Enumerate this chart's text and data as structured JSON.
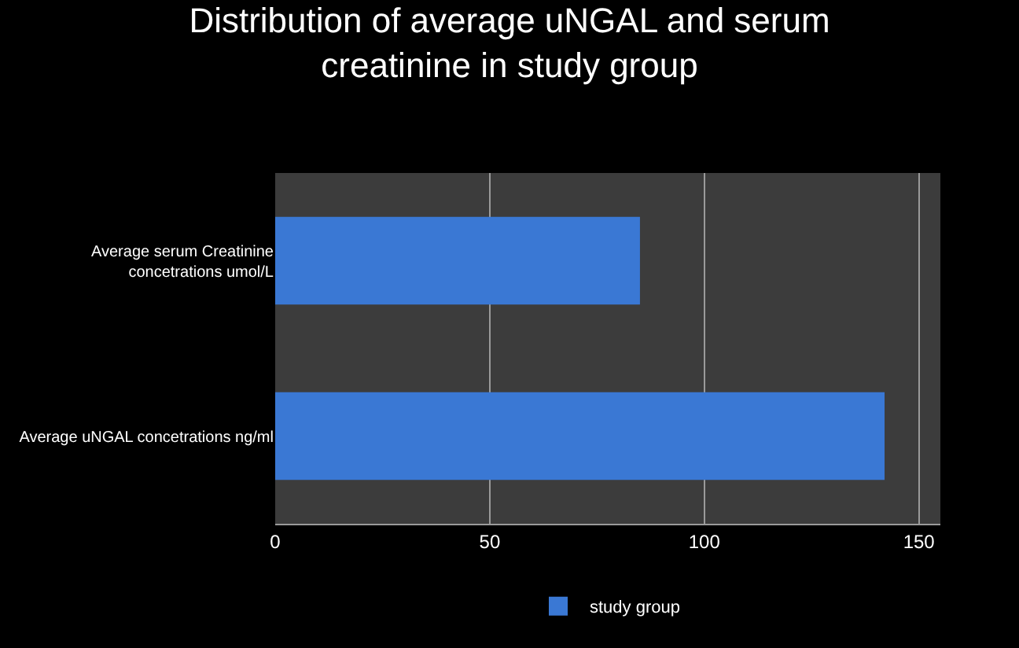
{
  "chart_data": {
    "type": "bar",
    "orientation": "horizontal",
    "title": "Distribution of average uNGAL and serum creatinine in study group",
    "categories": [
      "Average serum Creatinine concetrations umol/L",
      "Average uNGAL concetrations ng/ml"
    ],
    "series": [
      {
        "name": "study group",
        "color": "#3a78d4",
        "values": [
          85,
          142
        ]
      }
    ],
    "xlim": [
      0,
      155
    ],
    "xticks": [
      0,
      50,
      100,
      150
    ],
    "grid": "x",
    "legend": "bottom"
  }
}
